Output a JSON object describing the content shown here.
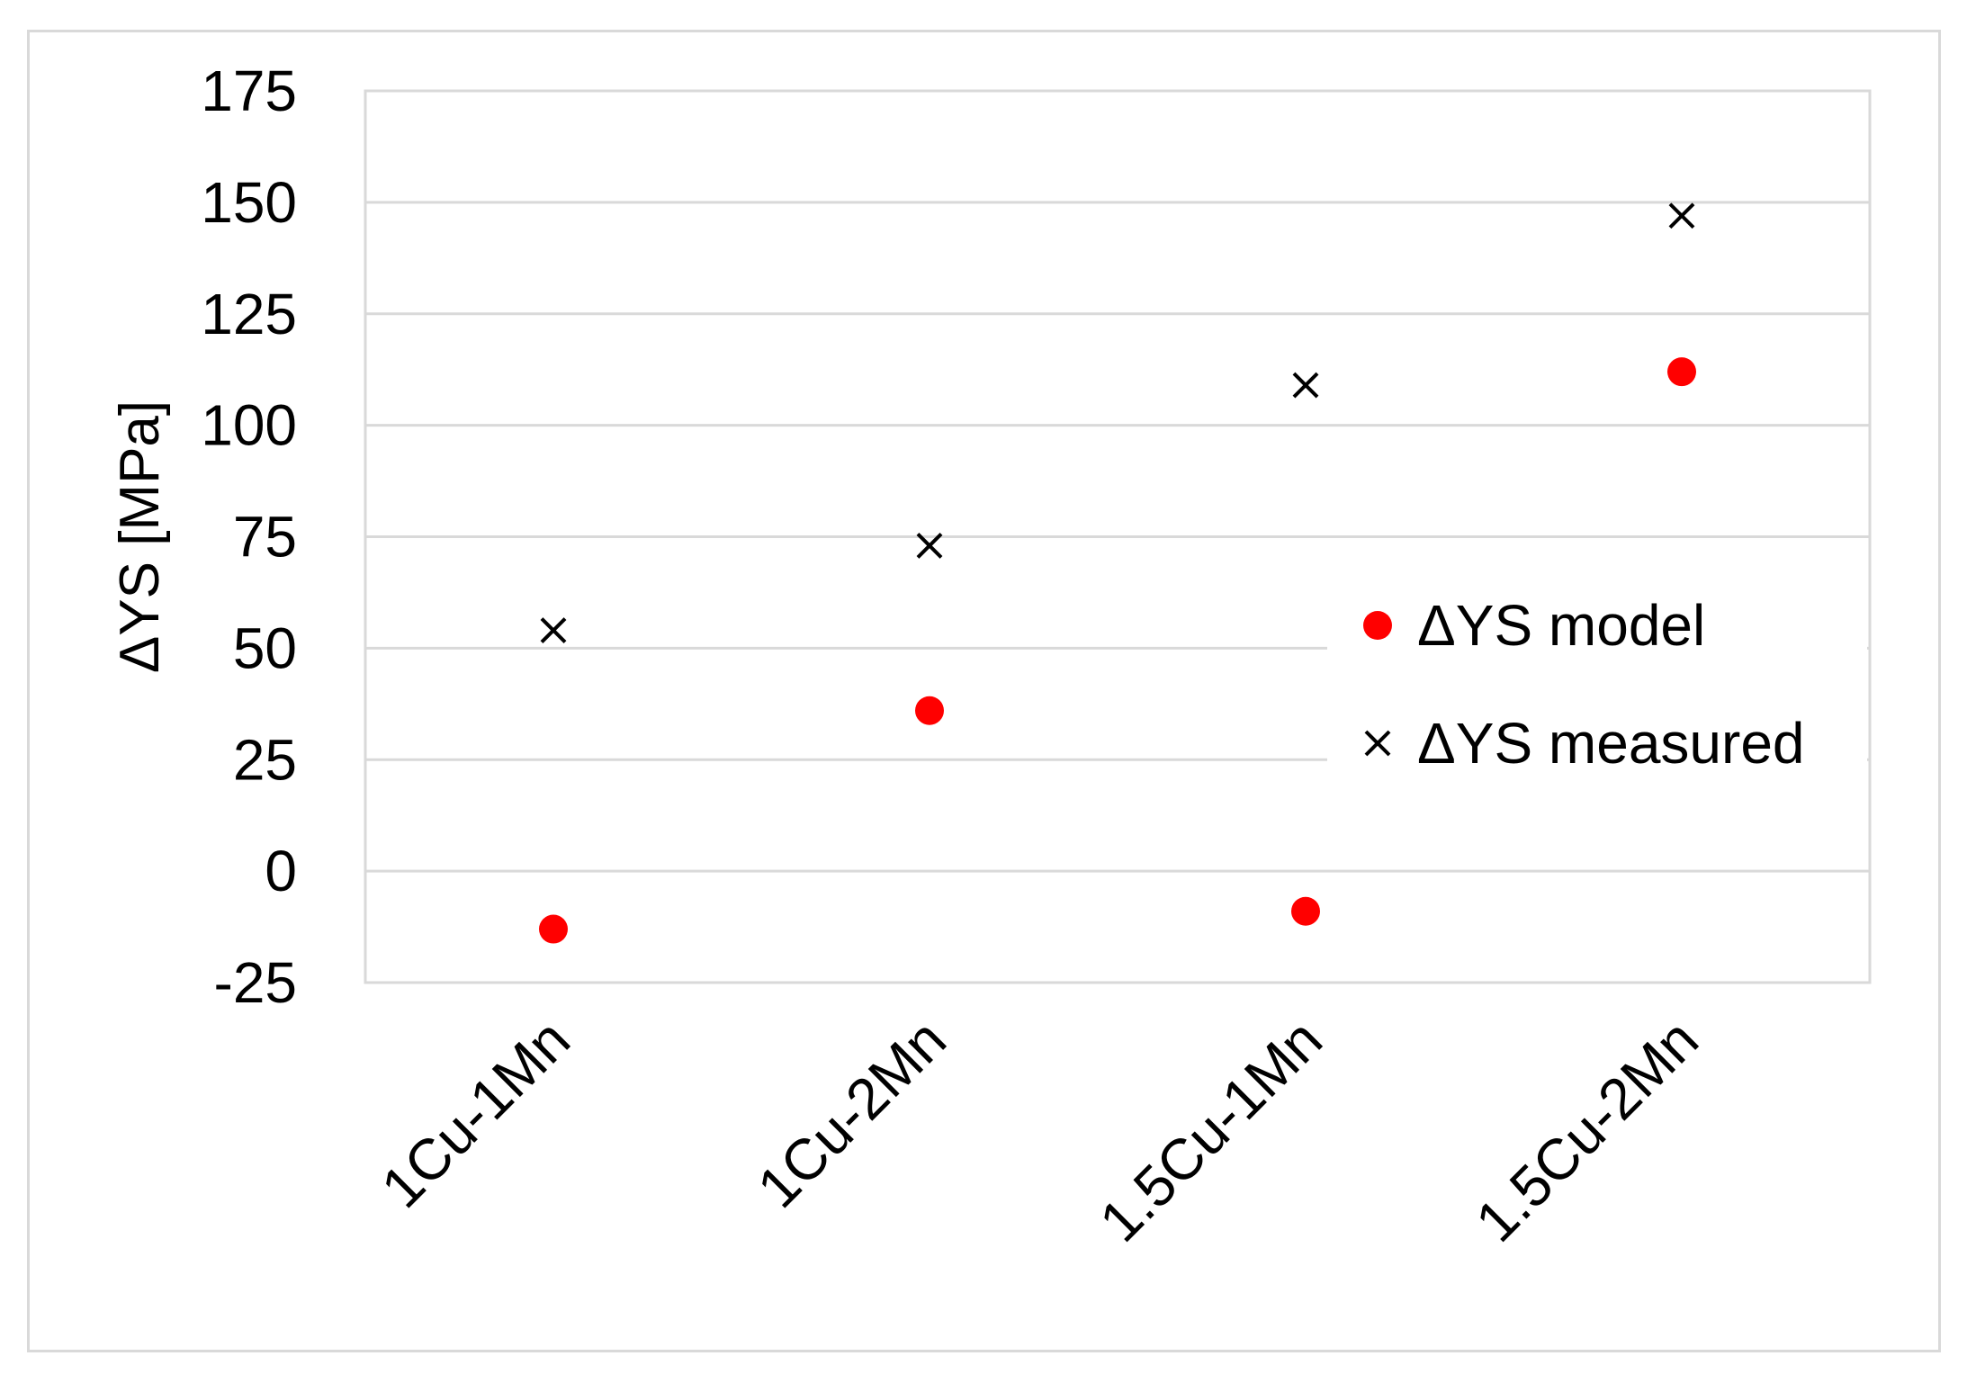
{
  "chart_data": {
    "type": "scatter",
    "title": "",
    "xlabel": "",
    "ylabel": "ΔYS [MPa]",
    "categories": [
      "1Cu-1Mn",
      "1Cu-2Mn",
      "1.5Cu-1Mn",
      "1.5Cu-2Mn"
    ],
    "ylim": [
      -25,
      175
    ],
    "yticks": [
      -25,
      0,
      25,
      50,
      75,
      100,
      125,
      150,
      175
    ],
    "grid": true,
    "legend_position": "right",
    "series": [
      {
        "name": "ΔYS model",
        "marker": "circle",
        "color": "#ff0000",
        "values": [
          -13,
          36,
          -9,
          112
        ]
      },
      {
        "name": "ΔYS measured",
        "marker": "x",
        "color": "#000000",
        "values": [
          54,
          73,
          109,
          147
        ]
      }
    ]
  }
}
